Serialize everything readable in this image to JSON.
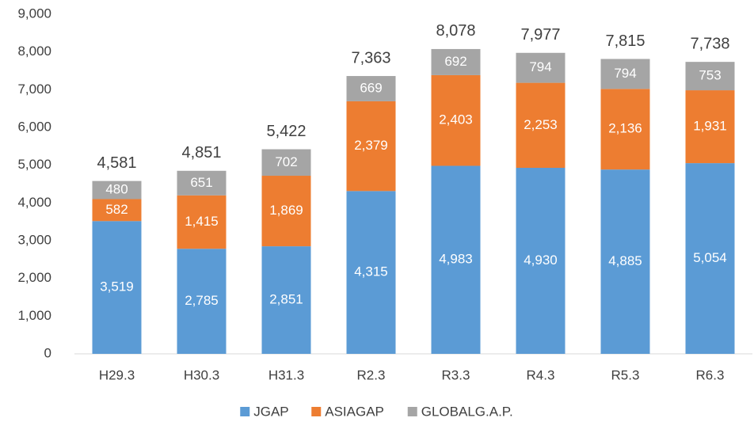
{
  "chart_data": {
    "type": "stacked_bar",
    "categories": [
      "H29.3",
      "H30.3",
      "H31.3",
      "R2.3",
      "R3.3",
      "R4.3",
      "R5.3",
      "R6.3"
    ],
    "series": [
      {
        "name": "JGAP",
        "color": "#5b9bd5",
        "values": [
          3519,
          2785,
          2851,
          4315,
          4983,
          4930,
          4885,
          5054
        ],
        "value_labels": [
          "3,519",
          "2,785",
          "2,851",
          "4,315",
          "4,983",
          "4,930",
          "4,885",
          "5,054"
        ]
      },
      {
        "name": "ASIAGAP",
        "color": "#ed7d31",
        "values": [
          582,
          1415,
          1869,
          2379,
          2403,
          2253,
          2136,
          1931
        ],
        "value_labels": [
          "582",
          "1,415",
          "1,869",
          "2,379",
          "2,403",
          "2,253",
          "2,136",
          "1,931"
        ]
      },
      {
        "name": "GLOBALG.A.P.",
        "color": "#a5a5a5",
        "values": [
          480,
          651,
          702,
          669,
          692,
          794,
          794,
          753
        ],
        "value_labels": [
          "480",
          "651",
          "702",
          "669",
          "692",
          "794",
          "794",
          "753"
        ]
      }
    ],
    "totals": [
      4581,
      4851,
      5422,
      7363,
      8078,
      7977,
      7815,
      7738
    ],
    "total_labels": [
      "4,581",
      "4,851",
      "5,422",
      "7,363",
      "8,078",
      "7,977",
      "7,815",
      "7,738"
    ],
    "ylim": [
      0,
      9000
    ],
    "yticks": [
      0,
      {
        "value": 1000,
        "label": "1,000"
      },
      {
        "value": 2000,
        "label": "2,000"
      },
      {
        "value": 3000,
        "label": "3,000"
      },
      {
        "value": 4000,
        "label": "4,000"
      },
      {
        "value": 5000,
        "label": "5,000"
      },
      {
        "value": 6000,
        "label": "6,000"
      },
      {
        "value": 7000,
        "label": "7,000"
      },
      {
        "value": 8000,
        "label": "8,000"
      },
      {
        "value": 9000,
        "label": "9,000"
      }
    ],
    "grid": false,
    "legend": "bottom"
  }
}
